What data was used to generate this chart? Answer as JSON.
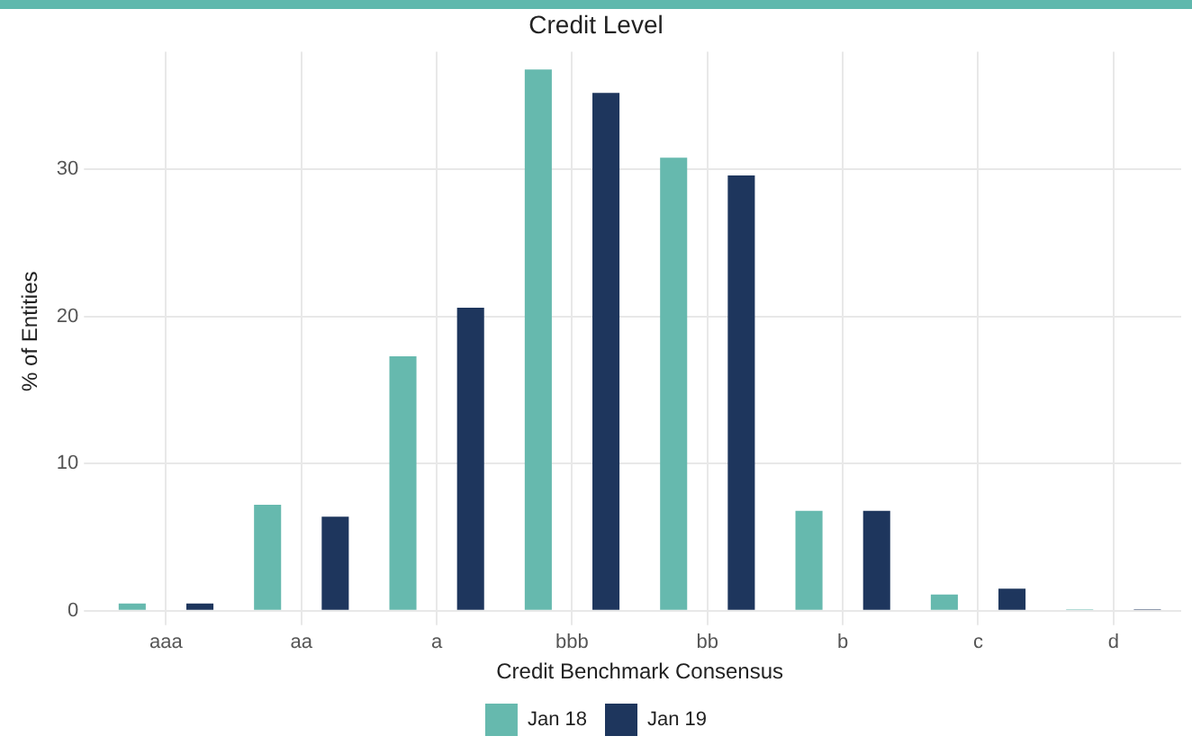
{
  "chart_data": {
    "type": "bar",
    "title": "Credit Level",
    "xlabel": "Credit Benchmark Consensus",
    "ylabel": "% of Entities",
    "categories": [
      "aaa",
      "aa",
      "a",
      "bbb",
      "bb",
      "b",
      "c",
      "d"
    ],
    "series": [
      {
        "name": "Jan 18",
        "color": "#66b9ae",
        "values": [
          0.5,
          7.2,
          17.3,
          36.8,
          30.8,
          6.8,
          1.1,
          0.1
        ]
      },
      {
        "name": "Jan 19",
        "color": "#1e365d",
        "values": [
          0.5,
          6.4,
          20.6,
          35.2,
          29.6,
          6.8,
          1.5,
          0.1
        ]
      }
    ],
    "ylim": [
      0,
      38
    ],
    "yticks": [
      0,
      10,
      20,
      30
    ],
    "grid": true,
    "legend": "bottom"
  }
}
